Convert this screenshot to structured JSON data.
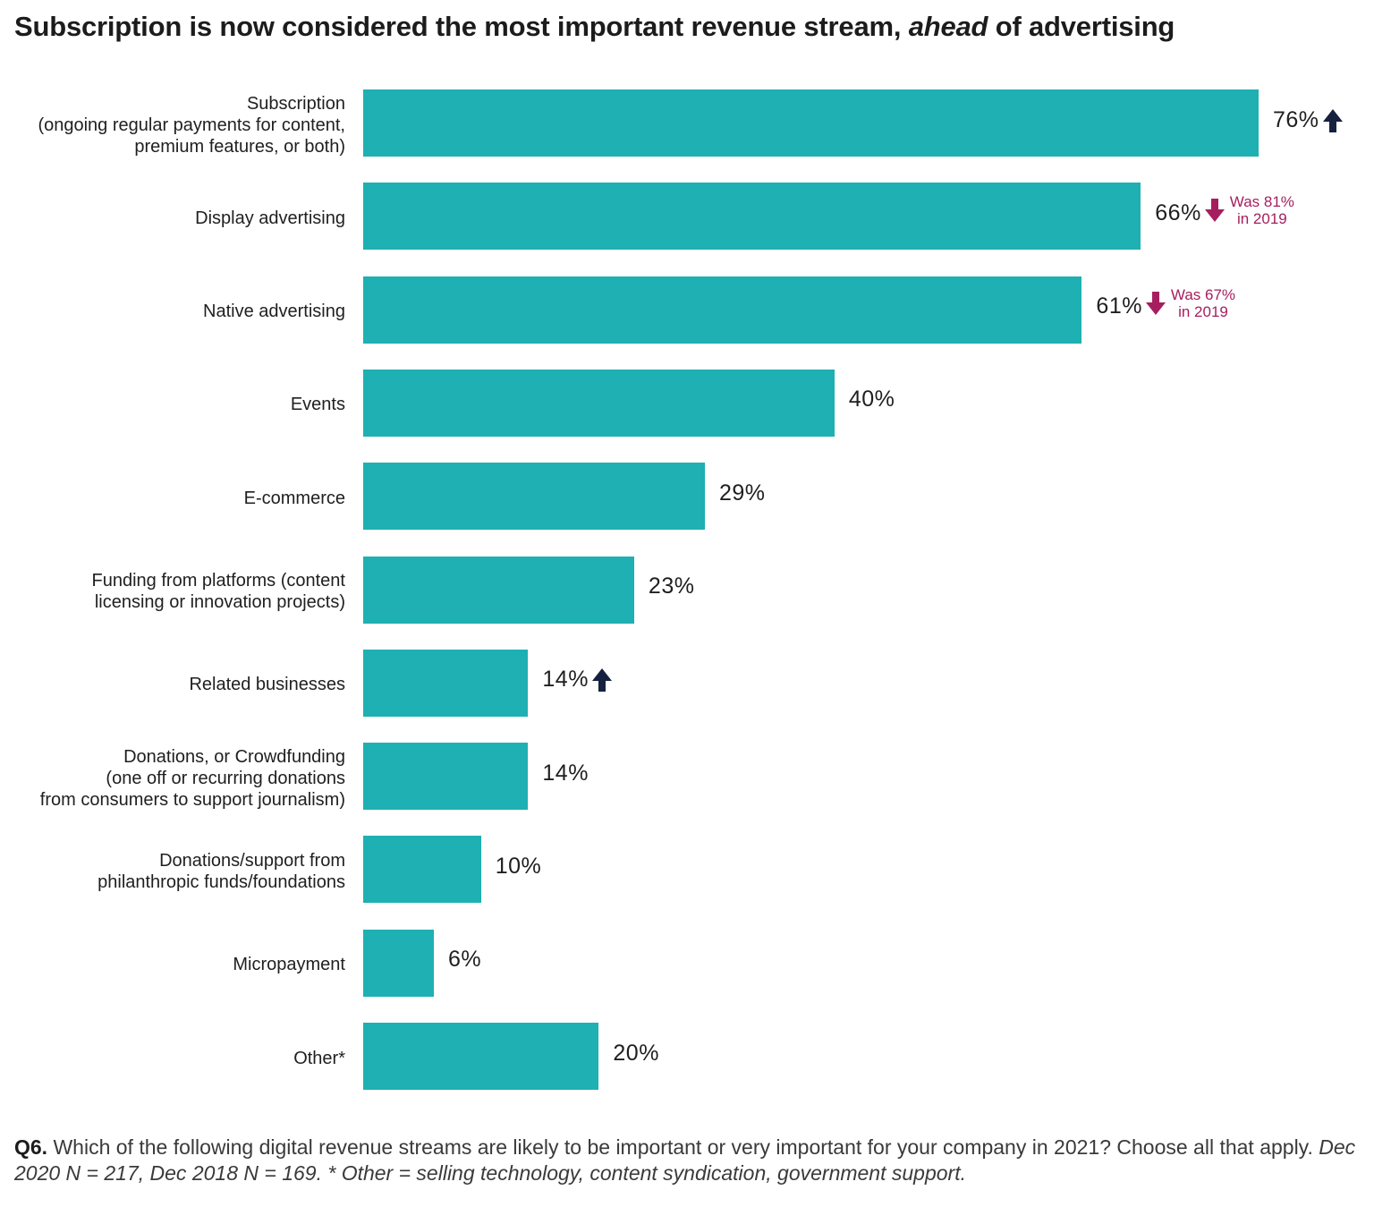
{
  "title": {
    "part1": "Subscription is now considered the most important revenue stream, ",
    "emphasis": "ahead",
    "part2": " of advertising"
  },
  "chart_data": {
    "type": "bar",
    "orientation": "horizontal",
    "title": "Subscription is now considered the most important revenue stream, ahead of advertising",
    "xlim": [
      0,
      76
    ],
    "categories": [
      [
        "Subscription",
        "(ongoing regular payments for content,",
        "premium features, or both)"
      ],
      [
        "Display advertising"
      ],
      [
        "Native advertising"
      ],
      [
        "Events"
      ],
      [
        "E-commerce"
      ],
      [
        "Funding from platforms (content",
        "licensing or innovation projects)"
      ],
      [
        "Related businesses"
      ],
      [
        "Donations, or Crowdfunding",
        "(one off or recurring donations",
        "from consumers to support journalism)"
      ],
      [
        "Donations/support from",
        "philanthropic funds/foundations"
      ],
      [
        "Micropayment"
      ],
      [
        "Other*"
      ]
    ],
    "values": [
      76,
      66,
      61,
      40,
      29,
      23,
      14,
      14,
      10,
      6,
      20
    ],
    "value_labels": [
      "76%",
      "66%",
      "61%",
      "40%",
      "29%",
      "23%",
      "14%",
      "14%",
      "10%",
      "6%",
      "20%"
    ],
    "up_markers": [
      0,
      6
    ],
    "down_annotations": [
      {
        "index": 1,
        "lines": [
          "Was 81%",
          "in 2019"
        ]
      },
      {
        "index": 2,
        "lines": [
          "Was 67%",
          "in 2019"
        ]
      }
    ],
    "bar_color": "#1eb0b2",
    "up_color": "#16213f",
    "down_color": "#a51f5e"
  },
  "footnote": {
    "qnum": "Q6.",
    "question": " Which of the following digital revenue streams are likely to be important or very important for your company in 2021? Choose all that apply. ",
    "details": "Dec 2020 N = 217, Dec 2018 N = 169. * Other = selling technology, content syndication, government support."
  }
}
